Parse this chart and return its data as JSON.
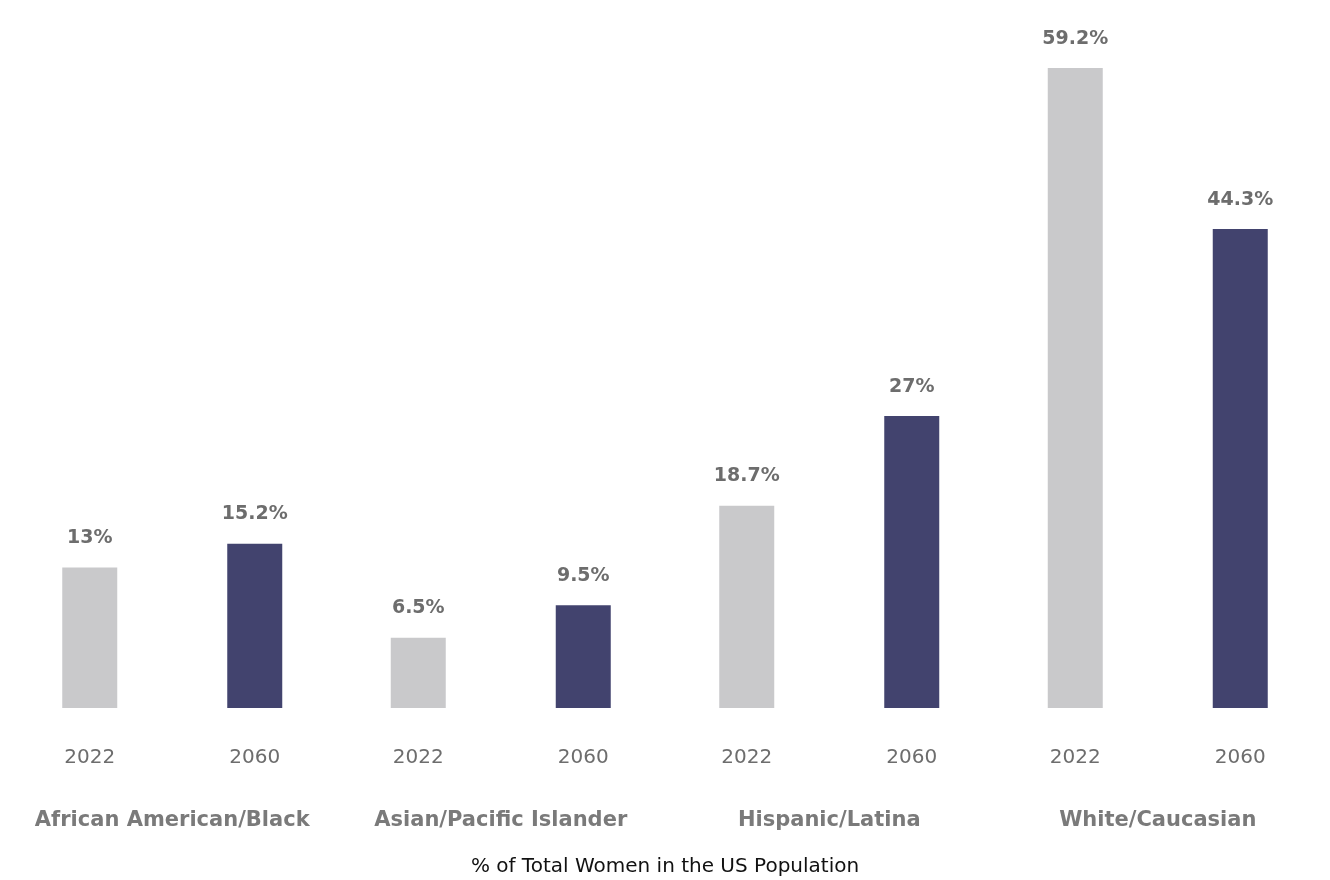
{
  "chart_data": {
    "type": "bar",
    "xlabel": "% of Total Women in the US Population",
    "categories": [
      "African American/Black",
      "Asian/Pacific Islander",
      "Hispanic/Latina",
      "White/Caucasian"
    ],
    "series": [
      {
        "name": "2022",
        "color": "#c9c9cb",
        "values": [
          13,
          6.5,
          18.7,
          59.2
        ],
        "value_labels": [
          "13%",
          "6.5%",
          "18.7%",
          "59.2%"
        ]
      },
      {
        "name": "2060",
        "color": "#42436e",
        "values": [
          15.2,
          9.5,
          27,
          44.3
        ],
        "value_labels": [
          "15.2%",
          "9.5%",
          "27%",
          "44.3%"
        ]
      }
    ],
    "legend": false
  }
}
